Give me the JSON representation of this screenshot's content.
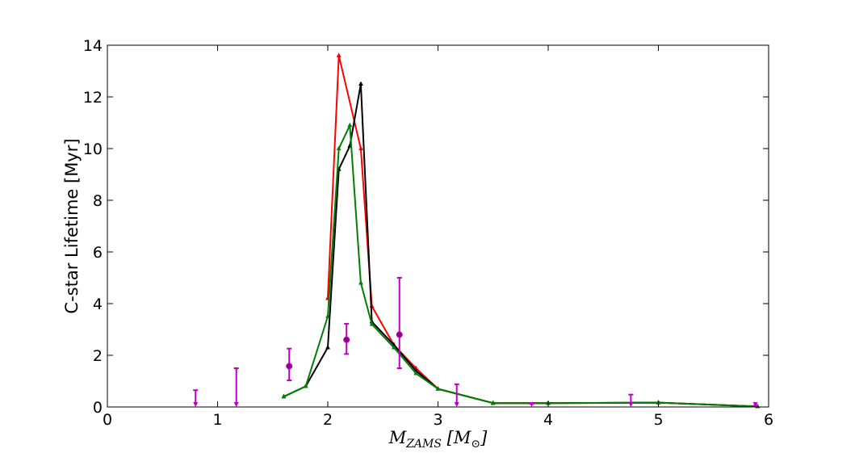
{
  "chart_data": {
    "type": "line",
    "xlabel": "M_ZAMS [M_⊙]",
    "xlabel_parts": {
      "base": "M",
      "sub": "ZAMS",
      "bracket_base": "M",
      "bracket_sub": "⊙"
    },
    "ylabel": "C-star Lifetime [Myr]",
    "xlim": [
      0,
      6
    ],
    "ylim": [
      0,
      14
    ],
    "xticks": [
      0,
      1,
      2,
      3,
      4,
      5,
      6
    ],
    "yticks": [
      0,
      2,
      4,
      6,
      8,
      10,
      12,
      14
    ],
    "grid": false,
    "legend": "none",
    "series": [
      {
        "color": "#ff0000",
        "marker": "triangle",
        "points": [
          [
            2.0,
            4.2
          ],
          [
            2.1,
            13.6
          ],
          [
            2.3,
            10.0
          ],
          [
            2.4,
            3.9
          ],
          [
            2.6,
            2.4
          ],
          [
            2.8,
            1.5
          ],
          [
            3.0,
            0.7
          ],
          [
            3.5,
            0.15
          ],
          [
            4.0,
            0.15
          ],
          [
            5.0,
            0.17
          ],
          [
            5.9,
            0.02
          ]
        ]
      },
      {
        "color": "#000000",
        "marker": "triangle",
        "points": [
          [
            1.6,
            0.4
          ],
          [
            1.8,
            0.8
          ],
          [
            2.0,
            2.3
          ],
          [
            2.1,
            9.2
          ],
          [
            2.2,
            10.1
          ],
          [
            2.3,
            12.5
          ],
          [
            2.4,
            3.3
          ],
          [
            2.6,
            2.4
          ],
          [
            2.8,
            1.4
          ],
          [
            3.0,
            0.7
          ],
          [
            3.5,
            0.15
          ],
          [
            4.0,
            0.15
          ],
          [
            5.0,
            0.17
          ],
          [
            5.9,
            0.02
          ]
        ]
      },
      {
        "color": "#008000",
        "marker": "triangle",
        "points": [
          [
            1.6,
            0.4
          ],
          [
            1.8,
            0.8
          ],
          [
            2.0,
            3.5
          ],
          [
            2.1,
            10.0
          ],
          [
            2.2,
            10.9
          ],
          [
            2.3,
            4.8
          ],
          [
            2.4,
            3.2
          ],
          [
            2.6,
            2.3
          ],
          [
            2.8,
            1.3
          ],
          [
            3.0,
            0.7
          ],
          [
            3.5,
            0.15
          ],
          [
            4.0,
            0.15
          ],
          [
            5.0,
            0.17
          ],
          [
            5.9,
            0.02
          ]
        ]
      }
    ],
    "observations": {
      "color": "#c000c0",
      "points": [
        {
          "x": 1.65,
          "y": 1.58,
          "yerr_low": 0.55,
          "yerr_high": 0.68
        },
        {
          "x": 2.17,
          "y": 2.6,
          "yerr_low": 0.55,
          "yerr_high": 0.62
        },
        {
          "x": 2.65,
          "y": 2.8,
          "yerr_low": 1.3,
          "yerr_high": 2.2
        }
      ],
      "upper_limits": [
        {
          "x": 0.8,
          "y_top": 0.65
        },
        {
          "x": 1.17,
          "y_top": 1.5
        },
        {
          "x": 3.17,
          "y_top": 0.88
        },
        {
          "x": 3.85,
          "y_top": 0.12
        },
        {
          "x": 4.75,
          "y_top": 0.48
        },
        {
          "x": 5.88,
          "y_top": 0.05
        }
      ]
    }
  }
}
